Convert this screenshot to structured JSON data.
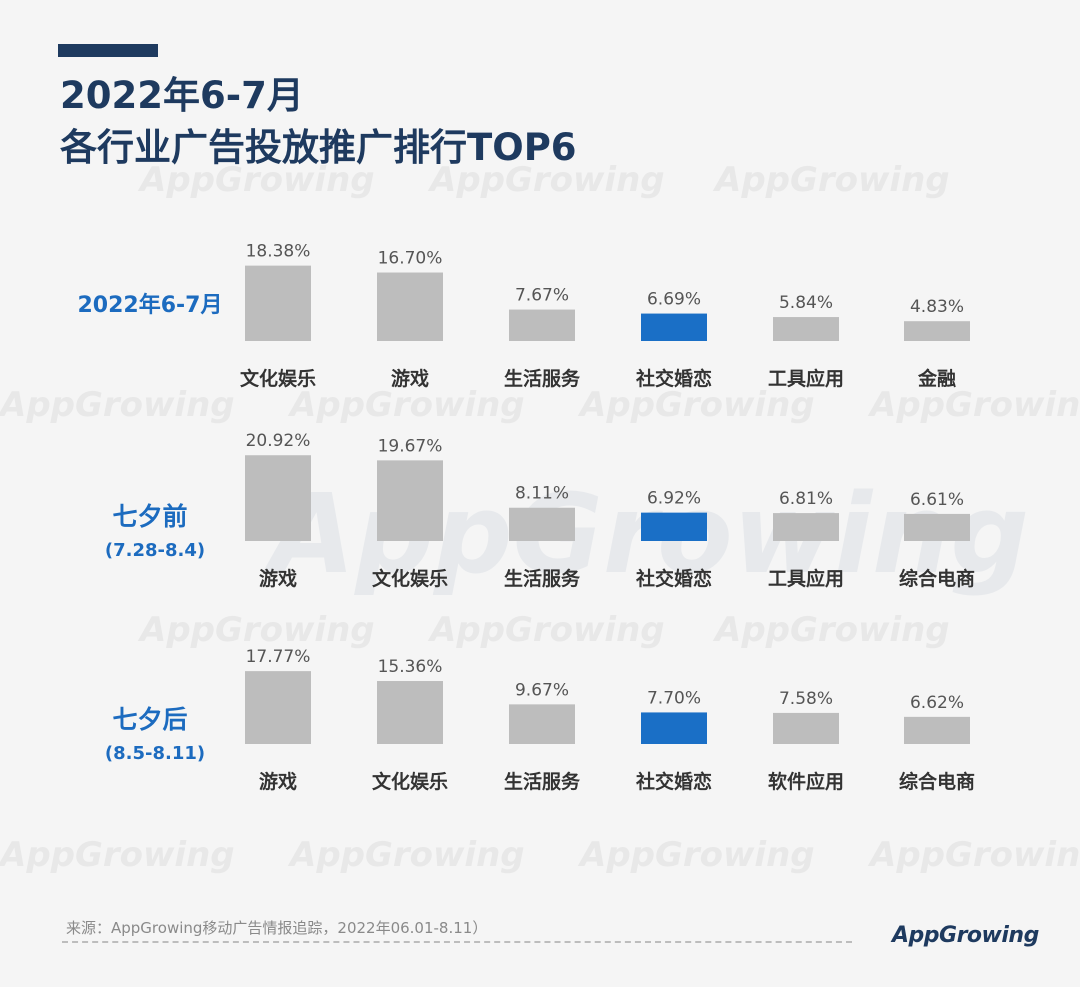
{
  "title": {
    "line1": "2022年6-7月",
    "line2": "各行业广告投放推广排行TOP6"
  },
  "source": "来源：AppGrowing移动广告情报追踪，2022年06.01-8.11）",
  "logo": "AppGrowing",
  "watermark": "AppGrowing",
  "colors": {
    "title": "#1e3a5f",
    "accent_bar": "#1e3a5f",
    "row_label": "#1c6bbf",
    "bar_default": "#bdbdbd",
    "bar_highlight": "#1a6fc6",
    "value_text": "#555555",
    "category_text": "#333333"
  },
  "chart_data": [
    {
      "type": "bar",
      "label": "2022年6-7月",
      "sublabel": "",
      "categories": [
        "文化娱乐",
        "游戏",
        "生活服务",
        "社交婚恋",
        "工具应用",
        "金融"
      ],
      "values": [
        18.38,
        16.7,
        7.67,
        6.69,
        5.84,
        4.83
      ],
      "value_labels": [
        "18.38%",
        "16.70%",
        "7.67%",
        "6.69%",
        "5.84%",
        "4.83%"
      ],
      "highlight": "社交婚恋"
    },
    {
      "type": "bar",
      "label": "七夕前",
      "sublabel": "(7.28-8.4)",
      "categories": [
        "游戏",
        "文化娱乐",
        "生活服务",
        "社交婚恋",
        "工具应用",
        "综合电商"
      ],
      "values": [
        20.92,
        19.67,
        8.11,
        6.92,
        6.81,
        6.61
      ],
      "value_labels": [
        "20.92%",
        "19.67%",
        "8.11%",
        "6.92%",
        "6.81%",
        "6.61%"
      ],
      "highlight": "社交婚恋"
    },
    {
      "type": "bar",
      "label": "七夕后",
      "sublabel": "(8.5-8.11)",
      "categories": [
        "游戏",
        "文化娱乐",
        "生活服务",
        "社交婚恋",
        "软件应用",
        "综合电商"
      ],
      "values": [
        17.77,
        15.36,
        9.67,
        7.7,
        7.58,
        6.62
      ],
      "value_labels": [
        "17.77%",
        "15.36%",
        "9.67%",
        "7.70%",
        "7.58%",
        "6.62%"
      ],
      "highlight": "社交婚恋"
    }
  ]
}
